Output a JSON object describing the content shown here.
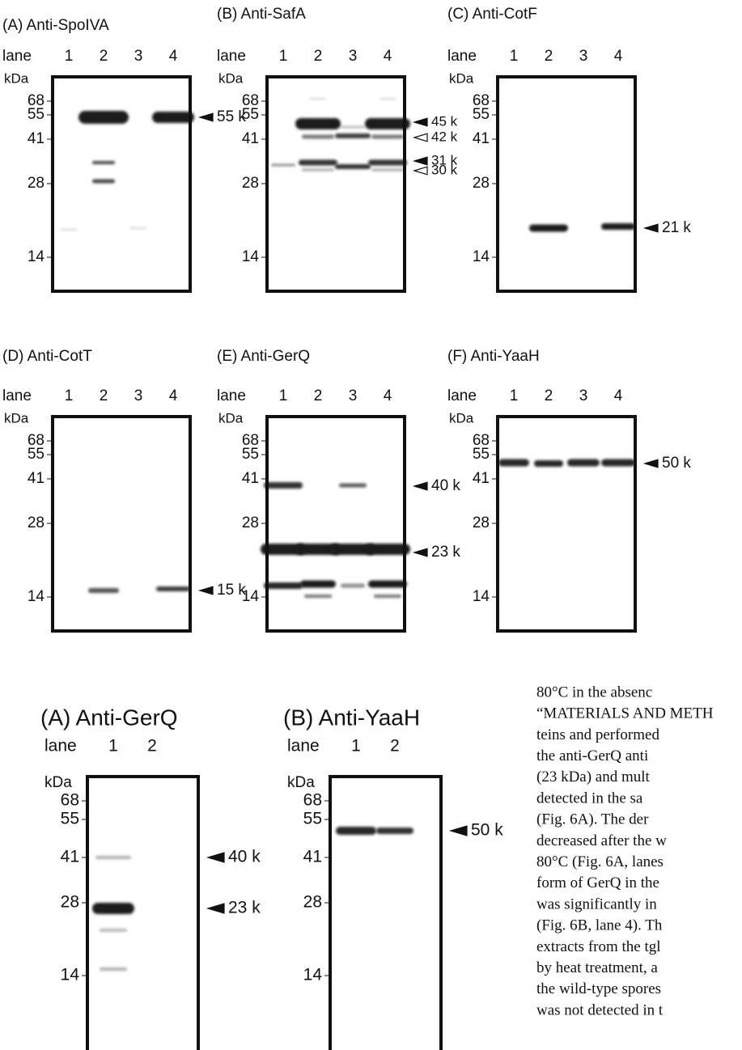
{
  "panels": [
    {
      "title": "(A) Anti-SpoIVA",
      "lane_label": "lane",
      "lanes": [
        "1",
        "2",
        "3",
        "4"
      ],
      "unit": "kDa",
      "markers": [
        "68",
        "55",
        "41",
        "28",
        "14"
      ],
      "arrows": [
        "55 k"
      ]
    },
    {
      "title": "(B) Anti-SafA",
      "lane_label": "lane",
      "lanes": [
        "1",
        "2",
        "3",
        "4"
      ],
      "unit": "kDa",
      "markers": [
        "68",
        "55",
        "41",
        "28",
        "14"
      ],
      "arrows": [
        "45 k",
        "42 k",
        "31 k",
        "30 k"
      ]
    },
    {
      "title": "(C) Anti-CotF",
      "lane_label": "lane",
      "lanes": [
        "1",
        "2",
        "3",
        "4"
      ],
      "unit": "kDa",
      "markers": [
        "68",
        "55",
        "41",
        "28",
        "14"
      ],
      "arrows": [
        "21 k"
      ]
    },
    {
      "title": "(D) Anti-CotT",
      "lane_label": "lane",
      "lanes": [
        "1",
        "2",
        "3",
        "4"
      ],
      "unit": "kDa",
      "markers": [
        "68",
        "55",
        "41",
        "28",
        "14"
      ],
      "arrows": [
        "15 k"
      ]
    },
    {
      "title": "(E) Anti-GerQ",
      "lane_label": "lane",
      "lanes": [
        "1",
        "2",
        "3",
        "4"
      ],
      "unit": "kDa",
      "markers": [
        "68",
        "55",
        "41",
        "28",
        "14"
      ],
      "arrows": [
        "40 k",
        "23 k"
      ]
    },
    {
      "title": "(F) Anti-YaaH",
      "lane_label": "lane",
      "lanes": [
        "1",
        "2",
        "3",
        "4"
      ],
      "unit": "kDa",
      "markers": [
        "68",
        "55",
        "41",
        "28",
        "14"
      ],
      "arrows": [
        "50 k"
      ]
    },
    {
      "title": "(A) Anti-GerQ",
      "lane_label": "lane",
      "lanes": [
        "1",
        "2"
      ],
      "unit": "kDa",
      "markers": [
        "68",
        "55",
        "41",
        "28",
        "14"
      ],
      "arrows": [
        "40 k",
        "23 k"
      ]
    },
    {
      "title": "(B) Anti-YaaH",
      "lane_label": "lane",
      "lanes": [
        "1",
        "2"
      ],
      "unit": "kDa",
      "markers": [
        "68",
        "55",
        "41",
        "28",
        "14"
      ],
      "arrows": [
        "50 k"
      ]
    }
  ],
  "text_lines": [
    "80°C in the absenc",
    "“MATERIALS AND METH",
    "teins and performed",
    "the anti-GerQ anti",
    "(23 kDa) and mult",
    "detected in the sa",
    "(Fig. 6A). The der",
    "decreased after the w",
    "80°C (Fig. 6A, lanes",
    "form of GerQ in the",
    "was significantly in",
    "(Fig. 6B, lane 4). Th",
    "extracts from the tgl",
    "by heat treatment, a",
    "the wild-type spores",
    "was not detected in t"
  ]
}
